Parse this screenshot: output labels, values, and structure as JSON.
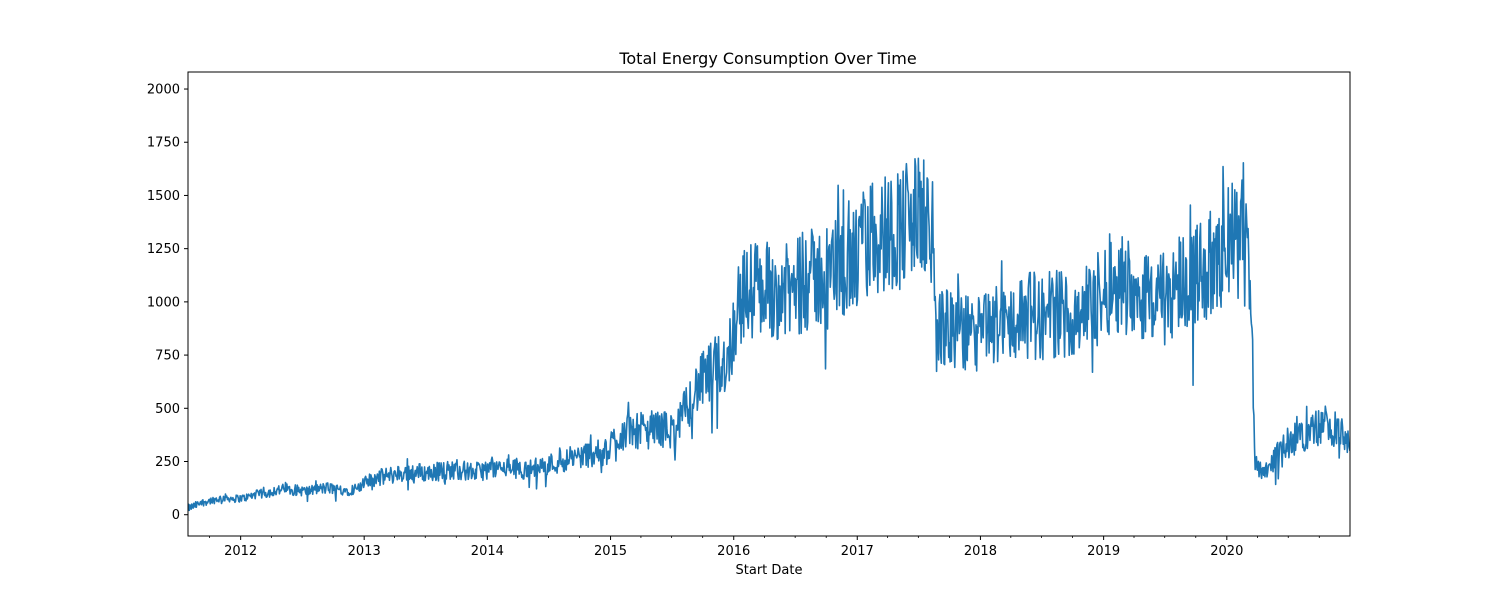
{
  "chart_data": {
    "type": "line",
    "title": "Total Energy Consumption Over Time",
    "xlabel": "Start Date",
    "ylabel": "",
    "grid": false,
    "legend": "none",
    "xlim": [
      "2011-07-29",
      "2020-12-31"
    ],
    "ylim": [
      -100,
      2080
    ],
    "x_ticks": [
      {
        "date": "2012-01-01",
        "label": "2012"
      },
      {
        "date": "2013-01-01",
        "label": "2013"
      },
      {
        "date": "2014-01-01",
        "label": "2014"
      },
      {
        "date": "2015-01-01",
        "label": "2015"
      },
      {
        "date": "2016-01-01",
        "label": "2016"
      },
      {
        "date": "2017-01-01",
        "label": "2017"
      },
      {
        "date": "2018-01-01",
        "label": "2018"
      },
      {
        "date": "2019-01-01",
        "label": "2019"
      },
      {
        "date": "2020-01-01",
        "label": "2020"
      }
    ],
    "y_ticks": [
      0,
      250,
      500,
      750,
      1000,
      1250,
      1500,
      1750,
      2000
    ],
    "series": [
      {
        "color": "#1f77b4",
        "points": [
          [
            "2011-07-29",
            30
          ],
          [
            "2011-08-15",
            40
          ],
          [
            "2011-09-15",
            60
          ],
          [
            "2011-10-15",
            70
          ],
          [
            "2011-11-15",
            80
          ],
          [
            "2011-12-15",
            75
          ],
          [
            "2012-01-15",
            80
          ],
          [
            "2012-02-15",
            95
          ],
          [
            "2012-03-15",
            100
          ],
          [
            "2012-04-15",
            115
          ],
          [
            "2012-05-15",
            120
          ],
          [
            "2012-06-15",
            115
          ],
          [
            "2012-07-15",
            110
          ],
          [
            "2012-08-15",
            120
          ],
          [
            "2012-09-15",
            125
          ],
          [
            "2012-10-15",
            120
          ],
          [
            "2012-11-15",
            115
          ],
          [
            "2012-12-15",
            125
          ],
          [
            "2013-01-15",
            160
          ],
          [
            "2013-02-15",
            175
          ],
          [
            "2013-03-15",
            185
          ],
          [
            "2013-04-15",
            190
          ],
          [
            "2013-05-15",
            200
          ],
          [
            "2013-06-15",
            200
          ],
          [
            "2013-07-15",
            195
          ],
          [
            "2013-08-15",
            205
          ],
          [
            "2013-09-15",
            210
          ],
          [
            "2013-10-15",
            210
          ],
          [
            "2013-11-15",
            200
          ],
          [
            "2013-12-15",
            205
          ],
          [
            "2014-01-15",
            220
          ],
          [
            "2014-02-15",
            215
          ],
          [
            "2014-03-15",
            225
          ],
          [
            "2014-04-15",
            210
          ],
          [
            "2014-05-15",
            215
          ],
          [
            "2014-06-15",
            235
          ],
          [
            "2014-07-15",
            240
          ],
          [
            "2014-08-15",
            255
          ],
          [
            "2014-09-15",
            270
          ],
          [
            "2014-10-15",
            280
          ],
          [
            "2014-11-15",
            290
          ],
          [
            "2014-12-15",
            285
          ],
          [
            "2015-01-15",
            360
          ],
          [
            "2015-02-15",
            390
          ],
          [
            "2015-03-15",
            400
          ],
          [
            "2015-04-15",
            390
          ],
          [
            "2015-05-15",
            410
          ],
          [
            "2015-06-15",
            400
          ],
          [
            "2015-07-15",
            390
          ],
          [
            "2015-08-15",
            510
          ],
          [
            "2015-09-15",
            600
          ],
          [
            "2015-10-15",
            650
          ],
          [
            "2015-11-15",
            700
          ],
          [
            "2015-12-15",
            730
          ],
          [
            "2016-01-15",
            1000
          ],
          [
            "2016-02-15",
            1050
          ],
          [
            "2016-03-15",
            1070
          ],
          [
            "2016-04-15",
            1060
          ],
          [
            "2016-05-15",
            1050
          ],
          [
            "2016-06-15",
            1040
          ],
          [
            "2016-07-15",
            1080
          ],
          [
            "2016-08-15",
            1100
          ],
          [
            "2016-09-15",
            1120
          ],
          [
            "2016-10-15",
            1150
          ],
          [
            "2016-11-15",
            1180
          ],
          [
            "2016-12-15",
            1150
          ],
          [
            "2017-01-15",
            1250
          ],
          [
            "2017-02-15",
            1300
          ],
          [
            "2017-03-15",
            1320
          ],
          [
            "2017-04-15",
            1340
          ],
          [
            "2017-05-15",
            1360
          ],
          [
            "2017-06-15",
            1390
          ],
          [
            "2017-07-15",
            1400
          ],
          [
            "2017-08-10",
            1380
          ],
          [
            "2017-08-20",
            900
          ],
          [
            "2017-09-15",
            880
          ],
          [
            "2017-10-15",
            860
          ],
          [
            "2017-11-15",
            850
          ],
          [
            "2017-12-15",
            840
          ],
          [
            "2018-01-15",
            860
          ],
          [
            "2018-02-15",
            900
          ],
          [
            "2018-03-15",
            890
          ],
          [
            "2018-04-15",
            920
          ],
          [
            "2018-05-15",
            940
          ],
          [
            "2018-06-15",
            930
          ],
          [
            "2018-07-15",
            920
          ],
          [
            "2018-08-15",
            950
          ],
          [
            "2018-09-15",
            940
          ],
          [
            "2018-10-15",
            960
          ],
          [
            "2018-11-15",
            980
          ],
          [
            "2018-12-15",
            990
          ],
          [
            "2019-01-15",
            1080
          ],
          [
            "2019-02-15",
            1100
          ],
          [
            "2019-03-15",
            1080
          ],
          [
            "2019-04-15",
            1050
          ],
          [
            "2019-05-15",
            1030
          ],
          [
            "2019-06-15",
            1000
          ],
          [
            "2019-07-15",
            1050
          ],
          [
            "2019-08-15",
            1100
          ],
          [
            "2019-09-15",
            1120
          ],
          [
            "2019-10-15",
            1150
          ],
          [
            "2019-11-15",
            1170
          ],
          [
            "2019-12-15",
            1200
          ],
          [
            "2020-01-15",
            1300
          ],
          [
            "2020-02-15",
            1250
          ],
          [
            "2020-03-10",
            1200
          ],
          [
            "2020-03-25",
            260
          ],
          [
            "2020-04-15",
            200
          ],
          [
            "2020-05-15",
            250
          ],
          [
            "2020-06-15",
            320
          ],
          [
            "2020-07-15",
            350
          ],
          [
            "2020-08-15",
            380
          ],
          [
            "2020-09-15",
            400
          ],
          [
            "2020-10-15",
            420
          ],
          [
            "2020-11-15",
            400
          ],
          [
            "2020-12-15",
            360
          ],
          [
            "2020-12-31",
            300
          ]
        ]
      }
    ]
  }
}
